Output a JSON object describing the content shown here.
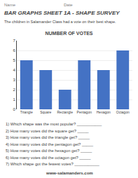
{
  "title": "BAR GRAPHS SHEET 1A - SHAPE SURVEY",
  "subtitle": "The children in Salamander Class had a vote on their best shape.",
  "annotations": [
    "Name",
    "Date",
    "1) Which shape was the most popular? ___________",
    "2) How many votes did the square get? _____",
    "3) How many votes did the triangle get? _____",
    "4) How many votes did the pentagon get? _____",
    "5) How many votes did the hexagon get? _____",
    "6) How many votes did the octagon get? _____",
    "7) Which shape got the fewest votes? ___________",
    "www-salamanders.com"
  ],
  "chart_data": {
    "type": "bar",
    "title": "NUMBER OF VOTES",
    "categories": [
      "Triangle",
      "Square",
      "Rectangle",
      "Pentagon",
      "Hexagon",
      "Octagon"
    ],
    "values": [
      5,
      4,
      2,
      5,
      4,
      6
    ],
    "color": "#4472C4",
    "ylim": [
      0,
      7
    ],
    "yticks": [
      0,
      1,
      2,
      3,
      4,
      5,
      6,
      7
    ],
    "grid": true
  }
}
